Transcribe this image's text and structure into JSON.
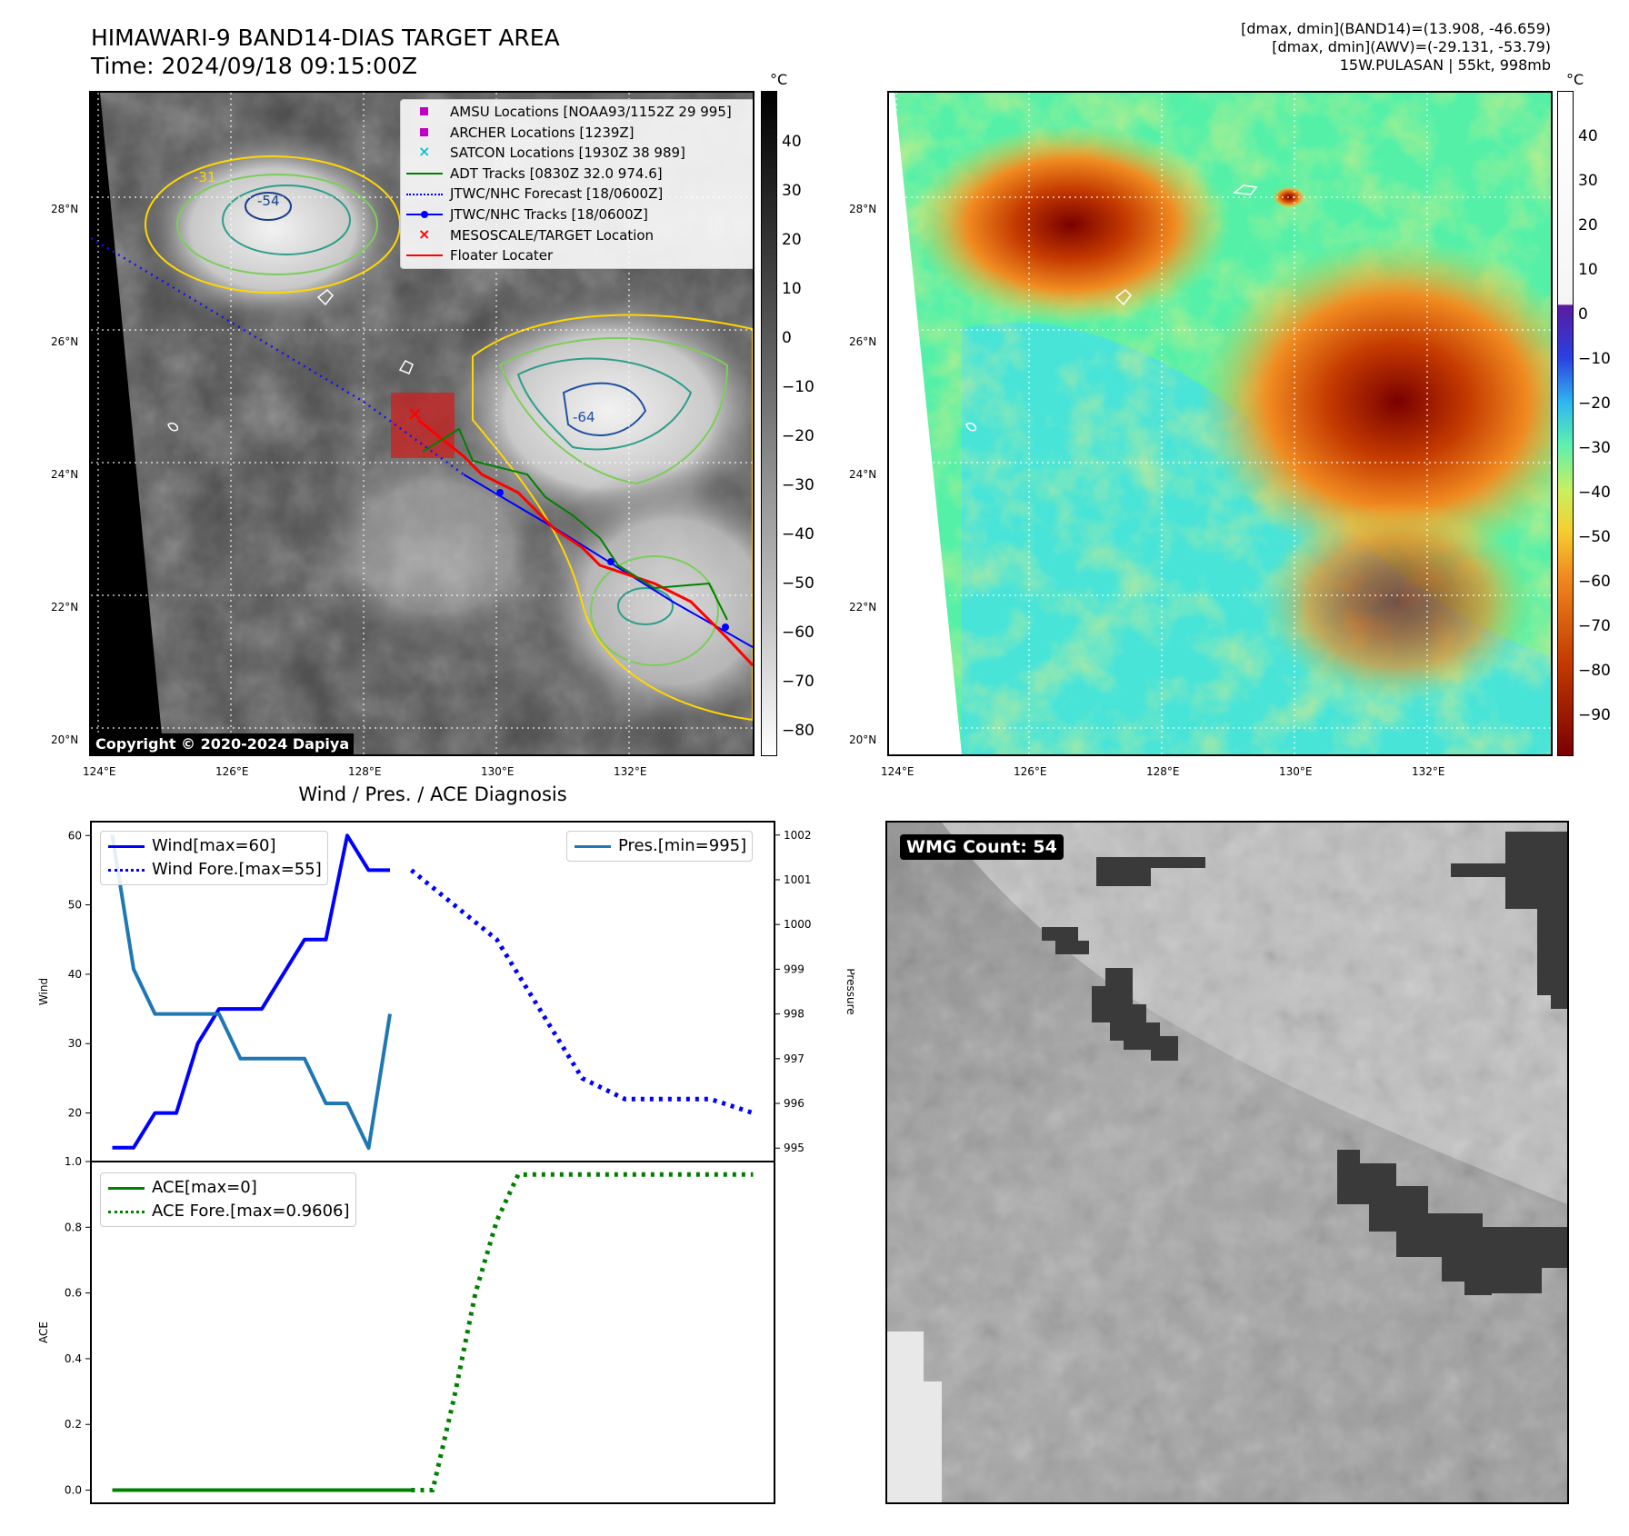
{
  "header": {
    "title_line1": "HIMAWARI-9 BAND14-DIAS TARGET AREA",
    "title_line2": "Time: 2024/09/18 09:15:00Z",
    "info_line1": "[dmax, dmin](BAND14)=(13.908, -46.659)",
    "info_line2": "[dmax, dmin](AWV)=(-29.131, -53.79)",
    "info_line3": "15W.PULASAN | 55kt, 998mb"
  },
  "map_axes": {
    "lat_labels": [
      "28°N",
      "26°N",
      "24°N",
      "22°N",
      "20°N"
    ],
    "lon_labels": [
      "124°E",
      "126°E",
      "128°E",
      "130°E",
      "132°E"
    ]
  },
  "ir_panel": {
    "copyright": "Copyright © 2020-2024 Dapiya",
    "contour_labels": [
      "-31",
      "-54",
      "-64"
    ],
    "legend": [
      {
        "label": "AMSU Locations [NOAA93/1152Z 29 995]",
        "symbol": "square",
        "color": "#c000c0"
      },
      {
        "label": "ARCHER Locations [1239Z]",
        "symbol": "square",
        "color": "#c000c0"
      },
      {
        "label": "SATCON Locations [1930Z 38 989]",
        "symbol": "x",
        "color": "#17becf"
      },
      {
        "label": "ADT Tracks [0830Z 32.0 974.6]",
        "symbol": "line",
        "color": "#008000"
      },
      {
        "label": "JTWC/NHC Forecast [18/0600Z]",
        "symbol": "dotted",
        "color": "#0000ff"
      },
      {
        "label": "JTWC/NHC Tracks [18/0600Z]",
        "symbol": "line-dot",
        "color": "#0000ff"
      },
      {
        "label": "MESOSCALE/TARGET Location",
        "symbol": "x",
        "color": "#ff0000"
      },
      {
        "label": "Floater Locater",
        "symbol": "line",
        "color": "#ff0000"
      }
    ]
  },
  "colorbar_gray": {
    "unit": "°C",
    "ticks": [
      "40",
      "30",
      "20",
      "10",
      "0",
      "−10",
      "−20",
      "−30",
      "−40",
      "−50",
      "−60",
      "−70",
      "−80"
    ]
  },
  "colorbar_color": {
    "unit": "°C",
    "ticks": [
      "40",
      "30",
      "20",
      "10",
      "0",
      "−10",
      "−20",
      "−30",
      "−40",
      "−50",
      "−60",
      "−70",
      "−80",
      "−90"
    ]
  },
  "wmg_panel": {
    "label": "WMG Count: 54"
  },
  "chart_data": [
    {
      "type": "line",
      "title": "Wind / Pres. / ACE Diagnosis",
      "ylabel": "Wind",
      "y2label": "Pressure",
      "ylim": [
        13,
        62
      ],
      "y2lim": [
        994.7,
        1002.3
      ],
      "yticks": [
        20,
        30,
        40,
        50,
        60
      ],
      "y2ticks": [
        995,
        996,
        997,
        998,
        999,
        1000,
        1001,
        1002
      ],
      "series": [
        {
          "name": "Wind[max=60]",
          "axis": "left",
          "style": "solid",
          "color": "#0000ff",
          "x": [
            0,
            1,
            2,
            3,
            4,
            5,
            6,
            7,
            8,
            9,
            10,
            11,
            12,
            13
          ],
          "values": [
            15,
            15,
            20,
            20,
            30,
            35,
            35,
            35,
            40,
            45,
            45,
            60,
            55,
            55
          ]
        },
        {
          "name": "Wind Fore.[max=55]",
          "axis": "left",
          "style": "dotted",
          "color": "#0000ff",
          "x": [
            14,
            16,
            18,
            20,
            22,
            24,
            26,
            28,
            30
          ],
          "values": [
            55,
            50,
            45,
            35,
            25,
            22,
            22,
            22,
            20
          ]
        },
        {
          "name": "Pres.[min=995]",
          "axis": "right",
          "style": "solid",
          "color": "#1f77b4",
          "x": [
            0,
            1,
            2,
            3,
            4,
            5,
            6,
            7,
            8,
            9,
            10,
            11,
            12,
            13
          ],
          "values": [
            1002,
            999,
            998,
            998,
            998,
            998,
            997,
            997,
            997,
            997,
            996,
            996,
            995,
            998
          ]
        }
      ]
    },
    {
      "type": "line",
      "ylabel": "ACE",
      "ylim": [
        -0.04,
        1.0
      ],
      "yticks": [
        0.0,
        0.2,
        0.4,
        0.6,
        0.8,
        1.0
      ],
      "series": [
        {
          "name": "ACE[max=0]",
          "style": "solid",
          "color": "#008000",
          "x": [
            0,
            2,
            4,
            6,
            8,
            10,
            12,
            14
          ],
          "values": [
            0,
            0,
            0,
            0,
            0,
            0,
            0,
            0
          ]
        },
        {
          "name": "ACE Fore.[max=0.9606]",
          "style": "dotted",
          "color": "#008000",
          "x": [
            14,
            15,
            16,
            17,
            18,
            19,
            20,
            24,
            28,
            30
          ],
          "values": [
            0,
            0,
            0.28,
            0.6,
            0.82,
            0.96,
            0.9606,
            0.9606,
            0.9606,
            0.9606
          ]
        }
      ]
    }
  ]
}
